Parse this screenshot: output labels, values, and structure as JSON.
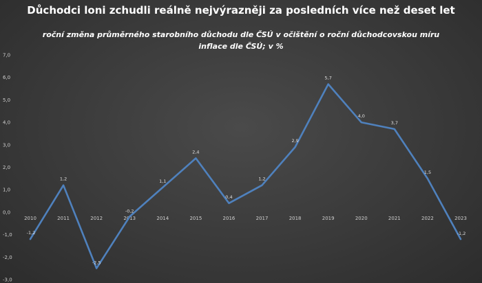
{
  "chart_data": {
    "type": "line",
    "title": "Důchodci loni zchudli reálně nejvýrazněji za posledních více než deset let",
    "subtitle": "roční změna průměrného starobního důchodu dle ČSÚ v očištění o roční důchodcovskou míru inflace dle ČSÚ; v %",
    "categories": [
      "2010",
      "2011",
      "2012",
      "2013",
      "2014",
      "2015",
      "2016",
      "2017",
      "2018",
      "2019",
      "2020",
      "2021",
      "2022",
      "2023"
    ],
    "series": [
      {
        "values": [
          -1.2,
          1.2,
          -2.5,
          -0.2,
          1.1,
          2.4,
          0.4,
          1.2,
          2.9,
          5.7,
          4.0,
          3.7,
          1.5,
          -1.2
        ],
        "labels": [
          "-1,2",
          "1,2",
          "-2,5",
          "-0,2",
          "1,1",
          "2,4",
          "0,4",
          "1,2",
          "2,9",
          "5,7",
          "4,0",
          "3,7",
          "1,5",
          "-1,2"
        ],
        "color": "#4f81bd"
      }
    ],
    "yticks": [
      "-3,0",
      "-2,0",
      "-1,0",
      "0,0",
      "1,0",
      "2,0",
      "3,0",
      "4,0",
      "5,0",
      "6,0",
      "7,0"
    ],
    "ylim": [
      -3,
      7
    ],
    "grid": false,
    "legend": "none"
  }
}
